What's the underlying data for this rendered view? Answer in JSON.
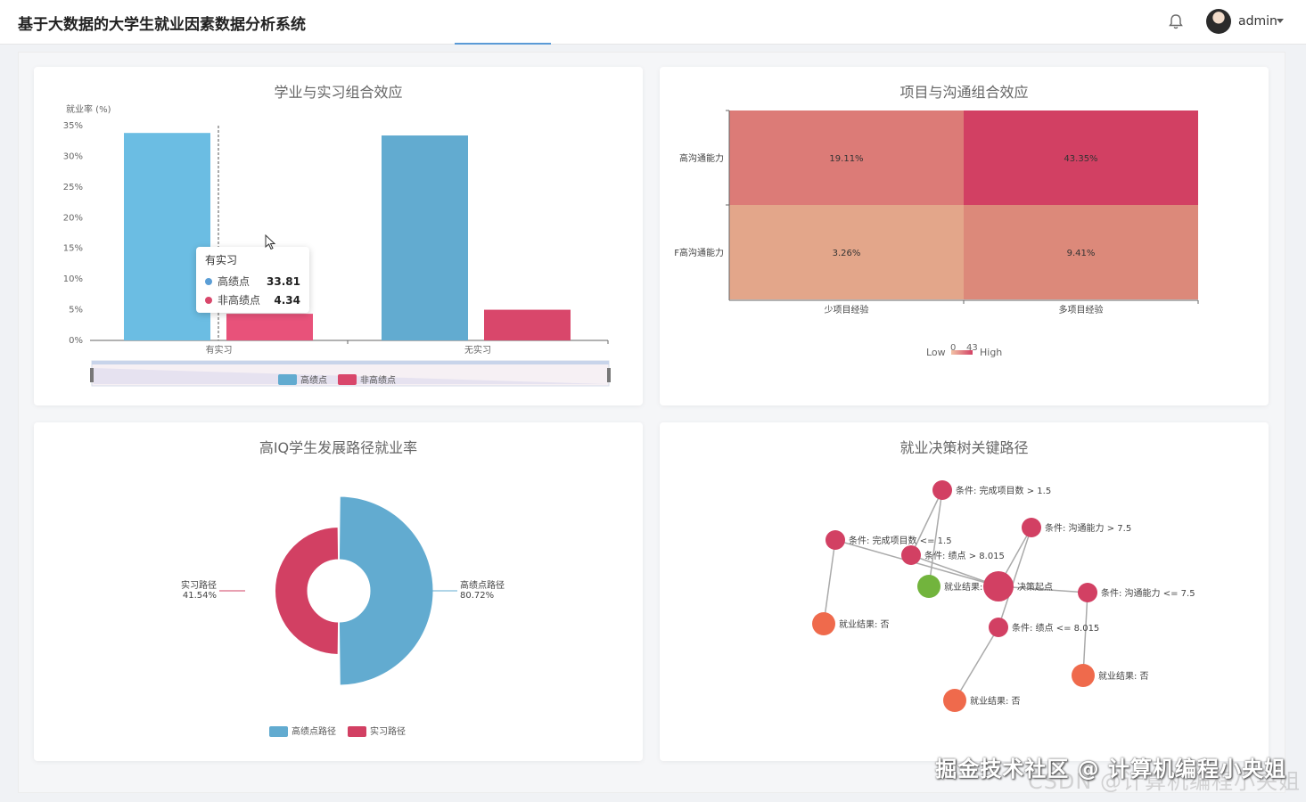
{
  "app": {
    "title": "基于大数据的大学生就业因素数据分析系统",
    "user": "admin"
  },
  "watermark": {
    "line1": "掘金技术社区 @ 计算机编程小央姐",
    "line2": "CSDN @计算机编程小央姐"
  },
  "colors": {
    "blue": "#6bbde3",
    "blue2": "#62abd0",
    "red": "#e8527a",
    "red2": "#d9476b",
    "green": "#72b43d",
    "orange": "#ef6a4c"
  },
  "chart_data": [
    {
      "type": "bar",
      "title": "学业与实习组合效应",
      "ylabel": "就业率 (%)",
      "categories": [
        "有实习",
        "无实习"
      ],
      "yticks": [
        "0%",
        "5%",
        "10%",
        "15%",
        "20%",
        "25%",
        "30%",
        "35%"
      ],
      "ylim": [
        0,
        35
      ],
      "series": [
        {
          "name": "高绩点",
          "values": [
            33.81,
            33.4
          ]
        },
        {
          "name": "非高绩点",
          "values": [
            4.34,
            5.0
          ]
        }
      ],
      "legend": [
        "高绩点",
        "非高绩点"
      ],
      "tooltip": {
        "title": "有实习",
        "rows": [
          {
            "name": "高绩点",
            "value": "33.81"
          },
          {
            "name": "非高绩点",
            "value": "4.34"
          }
        ]
      }
    },
    {
      "type": "heatmap",
      "title": "项目与沟通组合效应",
      "x": [
        "少项目经验",
        "多项目经验"
      ],
      "y": [
        "高沟通能力",
        "非高沟通能力"
      ],
      "y_display": [
        "高沟通能力",
        "F高沟通能力"
      ],
      "values": [
        [
          19.11,
          43.35
        ],
        [
          3.26,
          9.41
        ]
      ],
      "labels": [
        [
          "19.11%",
          "43.35%"
        ],
        [
          "3.26%",
          "9.41%"
        ]
      ],
      "visual_map": {
        "low_label": "Low",
        "high_label": "High",
        "min": "0",
        "max": "43"
      }
    },
    {
      "type": "pie",
      "title": "高IQ学生发展路径就业率",
      "slices": [
        {
          "name": "高绩点路径",
          "value": 80.72,
          "label": "80.72%"
        },
        {
          "name": "实习路径",
          "value": 41.54,
          "label": "41.54%"
        }
      ],
      "legend": [
        "高绩点路径",
        "实习路径"
      ]
    },
    {
      "type": "graph",
      "title": "就业决策树关键路径",
      "nodes": [
        {
          "id": "n1",
          "label": "条件: 完成项目数 > 1.5"
        },
        {
          "id": "n2",
          "label": "条件: 沟通能力 > 7.5"
        },
        {
          "id": "n3",
          "label": "条件: 完成项目数 <= 1.5"
        },
        {
          "id": "n4",
          "label": "条件: 绩点 > 8.015"
        },
        {
          "id": "n5",
          "label": "就业结果: 是"
        },
        {
          "id": "n6",
          "label": "决策起点"
        },
        {
          "id": "n7",
          "label": "条件: 沟通能力 <= 7.5"
        },
        {
          "id": "n8",
          "label": "就业结果: 否"
        },
        {
          "id": "n9",
          "label": "条件: 绩点 <= 8.015"
        },
        {
          "id": "n10",
          "label": "就业结果: 否"
        },
        {
          "id": "n11",
          "label": "就业结果: 否"
        }
      ]
    }
  ]
}
